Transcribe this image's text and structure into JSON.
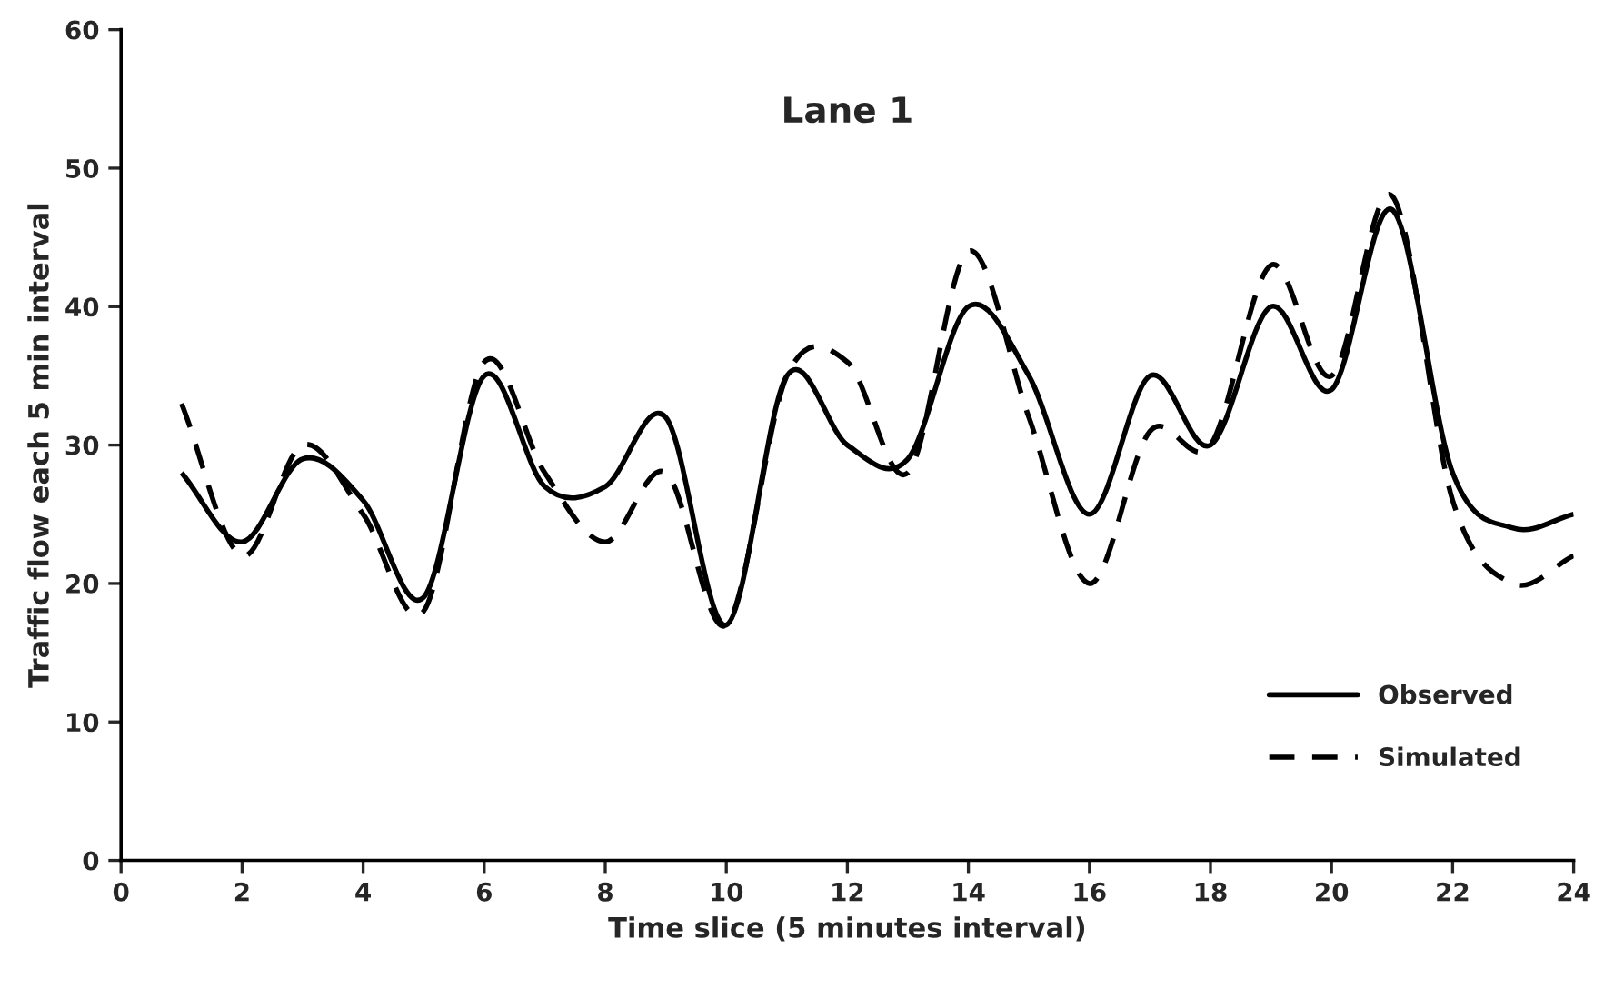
{
  "chart_data": {
    "type": "line",
    "title": "Lane 1",
    "xlabel": "Time slice (5 minutes interval)",
    "ylabel": "Traffic flow each 5 min interval",
    "x": [
      1,
      2,
      3,
      4,
      5,
      6,
      7,
      8,
      9,
      10,
      11,
      12,
      13,
      14,
      15,
      16,
      17,
      18,
      19,
      20,
      21,
      22,
      23,
      24
    ],
    "series": [
      {
        "name": "Observed",
        "color": "#000000",
        "line_style": "solid",
        "values": [
          28,
          23,
          29,
          26,
          19,
          35,
          27,
          27,
          32,
          17,
          35,
          30,
          29,
          40,
          35,
          25,
          35,
          30,
          40,
          34,
          47,
          28,
          24,
          25
        ]
      },
      {
        "name": "Simulated",
        "color": "#000000",
        "line_style": "dashed",
        "values": [
          33,
          22,
          30,
          25,
          18,
          36,
          28,
          23,
          28,
          17,
          35,
          36,
          28,
          44,
          32,
          20,
          31,
          30,
          43,
          35,
          48,
          26,
          20,
          22
        ]
      }
    ],
    "xlim": [
      0,
      24
    ],
    "xticks": [
      0,
      2,
      4,
      6,
      8,
      10,
      12,
      14,
      16,
      18,
      20,
      22,
      24
    ],
    "ylim": [
      0,
      60
    ],
    "yticks": [
      0,
      10,
      20,
      30,
      40,
      50,
      60
    ],
    "grid": false,
    "legend": "bottom right",
    "marker": "none"
  }
}
